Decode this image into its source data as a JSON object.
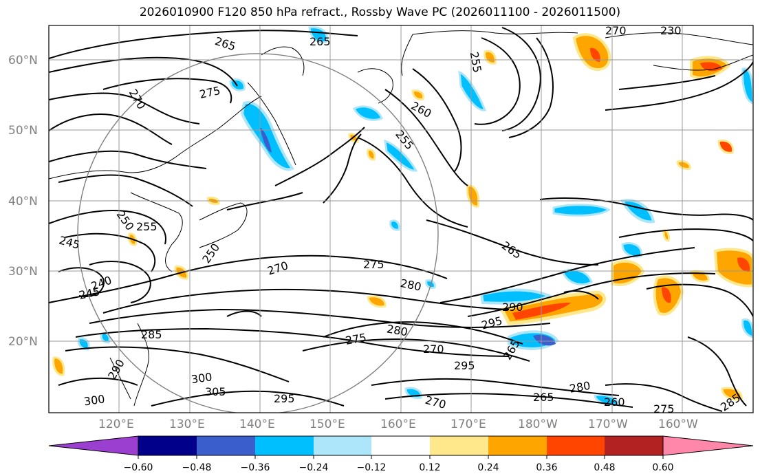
{
  "title": "2026010900 F120 850 hPa refract., Rossby Wave PC (2026011100 - 2026011500)",
  "lat_labels": [
    "60°N",
    "50°N",
    "40°N",
    "30°N",
    "20°N"
  ],
  "lon_labels": [
    "120°E",
    "130°E",
    "140°E",
    "150°E",
    "160°E",
    "170°E",
    "180°W",
    "170°W",
    "160°W"
  ],
  "contour_labels": [
    "265",
    "265",
    "270",
    "230",
    "255",
    "275",
    "270",
    "260",
    "255",
    "250",
    "255",
    "245",
    "240",
    "245",
    "250",
    "270",
    "275",
    "280",
    "265",
    "290",
    "295",
    "285",
    "275",
    "280",
    "270",
    "265",
    "295",
    "300",
    "305",
    "300",
    "295",
    "280",
    "265",
    "260",
    "270",
    "275",
    "285",
    "290"
  ],
  "colorbar": {
    "ticks": [
      "−0.60",
      "−0.48",
      "−0.36",
      "−0.24",
      "−0.12",
      "0.12",
      "0.24",
      "0.36",
      "0.48",
      "0.60"
    ],
    "colors": [
      "#9a3fd0",
      "#00008b",
      "#3a5fcd",
      "#00bfff",
      "#ade6fa",
      "#ffffff",
      "#ffe88c",
      "#ffa500",
      "#ff4500",
      "#b22222",
      "#ff88aa"
    ]
  },
  "anomaly_colors": {
    "light_blue": "#ade6fa",
    "blue": "#00bfff",
    "dark_blue": "#3a5fcd",
    "light_orange": "#ffe88c",
    "orange": "#ffa500",
    "red": "#ff4500"
  }
}
